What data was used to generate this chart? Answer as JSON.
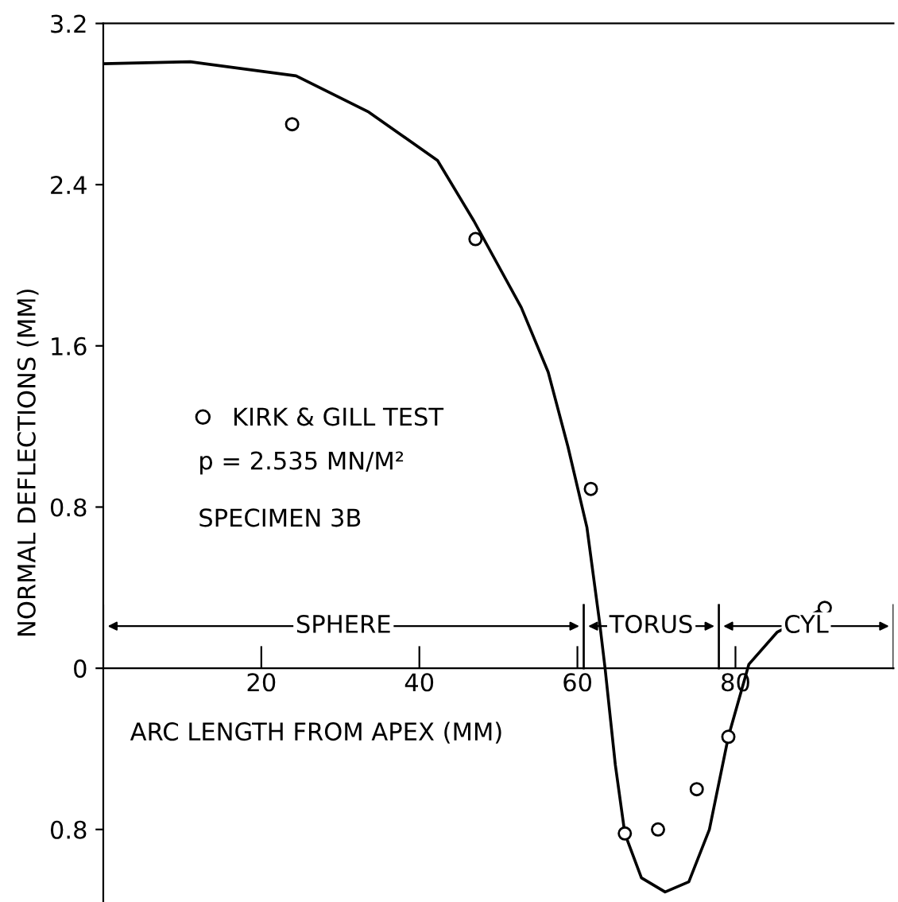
{
  "chart_data": {
    "type": "line",
    "xlabel": "ARC LENGTH FROM APEX (MM)",
    "ylabel": "NORMAL DEFLECTIONS (MM)",
    "xlim": [
      0,
      100
    ],
    "xticks": [
      20,
      40,
      60,
      80
    ],
    "ylim": [
      -1.16,
      3.2
    ],
    "yticks": [
      3.2,
      2.4,
      1.6,
      0.8,
      0,
      {
        "value": -0.8,
        "label": "0.8"
      }
    ],
    "series": [
      {
        "color": "#000000",
        "x": [
          0,
          11,
          24.4,
          33.6,
          42.3,
          46.9,
          52.9,
          56.3,
          58.8,
          61.2,
          62.8,
          63.5,
          64.8,
          66.0,
          68.1,
          71.1,
          74.1,
          76.7,
          79.1,
          81.7,
          85.3,
          91.3
        ],
        "values": [
          3.0,
          3.01,
          2.94,
          2.76,
          2.52,
          2.22,
          1.79,
          1.47,
          1.1,
          0.7,
          0.23,
          0,
          -0.48,
          -0.82,
          -1.04,
          -1.11,
          -1.06,
          -0.8,
          -0.34,
          0.02,
          0.18,
          0.3
        ]
      },
      {
        "type": "scatter",
        "name": "KIRK & GILL TEST",
        "color": "#000000",
        "marker": "circle",
        "x": [
          23.9,
          47.1,
          61.7,
          66.0,
          70.2,
          75.1,
          79.1,
          91.3
        ],
        "values": [
          2.7,
          2.13,
          0.89,
          -0.82,
          -0.8,
          -0.6,
          -0.34,
          0.3
        ]
      }
    ],
    "annotations": [
      "SPHERE",
      "TORUS",
      "CYL",
      "p = 2.535 MN/M²",
      "SPECIMEN 3B"
    ],
    "legend": "left",
    "grid": false
  }
}
